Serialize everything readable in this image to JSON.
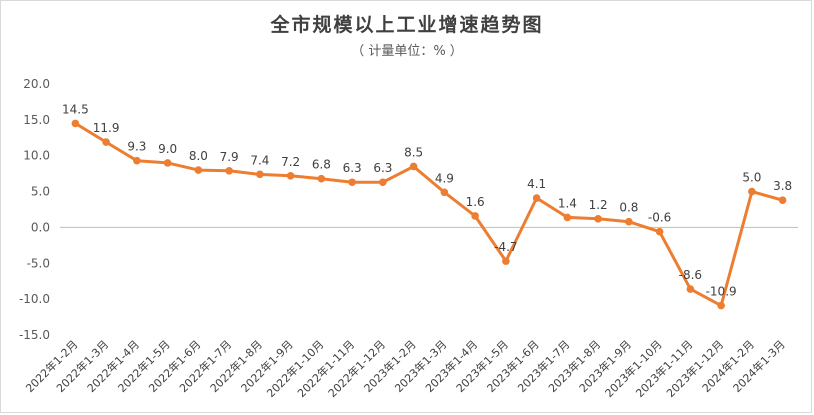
{
  "title": "全市规模以上工业增速趋势图",
  "subtitle": "（ 计量单位：% ）",
  "colors": {
    "line": "#ED7D31",
    "zero_line": "#A9D18E"
  },
  "chart_data": {
    "type": "line",
    "title": "全市规模以上工业增速趋势图",
    "subtitle": "（ 计量单位：% ）",
    "xlabel": "",
    "ylabel": "",
    "ylim": [
      -15,
      20
    ],
    "yticks": [
      "20.0",
      "15.0",
      "10.0",
      "5.0",
      "0.0",
      "-5.0",
      "-10.0",
      "-15.0"
    ],
    "grid": false,
    "legend": "none",
    "categories": [
      "2022年1-2月",
      "2022年1-3月",
      "2022年1-4月",
      "2022年1-5月",
      "2022年1-6月",
      "2022年1-7月",
      "2022年1-8月",
      "2022年1-9月",
      "2022年1-10月",
      "2022年1-11月",
      "2022年1-12月",
      "2023年1-2月",
      "2023年1-3月",
      "2023年1-4月",
      "2023年1-5月",
      "2023年1-6月",
      "2023年1-7月",
      "2023年1-8月",
      "2023年1-9月",
      "2023年1-10月",
      "2023年1-11月",
      "2023年1-12月",
      "2024年1-2月",
      "2024年1-3月"
    ],
    "values": [
      14.5,
      11.9,
      9.3,
      9.0,
      8.0,
      7.9,
      7.4,
      7.2,
      6.8,
      6.3,
      6.3,
      8.5,
      4.9,
      1.6,
      -4.7,
      4.1,
      1.4,
      1.2,
      0.8,
      -0.6,
      -8.6,
      -10.9,
      5.0,
      3.8
    ],
    "labels": [
      "14.5",
      "11.9",
      "9.3",
      "9.0",
      "8.0",
      "7.9",
      "7.4",
      "7.2",
      "6.8",
      "6.3",
      "6.3",
      "8.5",
      "4.9",
      "1.6",
      "-4.7",
      "4.1",
      "1.4",
      "1.2",
      "0.8",
      "-0.6",
      "-8.6",
      "-10.9",
      "5.0",
      "3.8"
    ]
  }
}
